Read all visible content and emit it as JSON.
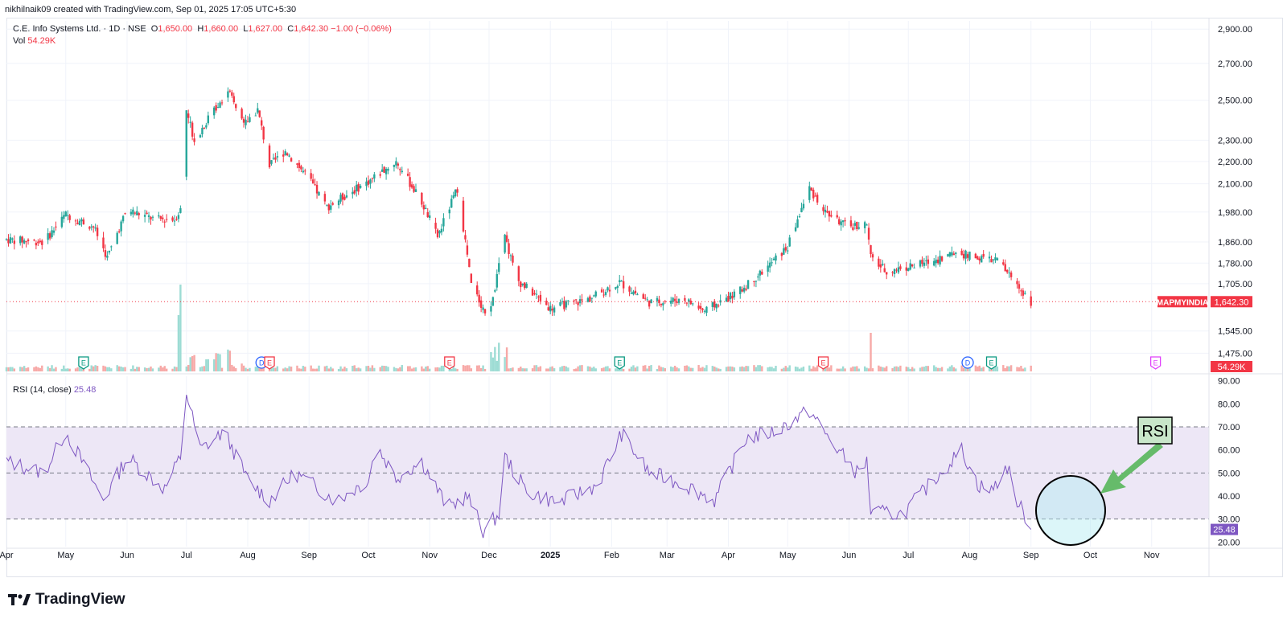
{
  "header": {
    "author_line": "nikhilnaik09 created with TradingView.com, Sep 01, 2025 17:05 UTC+5:30",
    "symbol_text": "C.E. Info Systems Ltd. · 1D · NSE",
    "ohlc": [
      {
        "k": "O",
        "v": "1,650.00"
      },
      {
        "k": "H",
        "v": "1,660.00"
      },
      {
        "k": "L",
        "v": "1,627.00"
      },
      {
        "k": "C",
        "v": "1,642.30"
      }
    ],
    "change": "−1.00 (−0.06%)",
    "vol_label": "Vol",
    "vol_value": "54.29K",
    "rsi_label": "RSI (14, close)",
    "rsi_value": "25.48"
  },
  "footer": {
    "brand": "TradingView"
  },
  "colors": {
    "up": "#26a69a",
    "down": "#f23645",
    "rsi_line": "#7e57c2",
    "rsi_band": "#ede7f6",
    "grid": "#f0f3fa",
    "axis_text": "#131722",
    "annotation_green": "#66bb6a",
    "annotation_circle_fill": "#b2ebf2"
  },
  "chart_data": [
    {
      "type": "candlestick",
      "title": "C.E. Info Systems Ltd. · 1D · NSE",
      "y_scale": "log",
      "ylim": [
        1420,
        2950
      ],
      "yticks": [
        "1,475.00",
        "1,545.00",
        "1,705.00",
        "1,780.00",
        "1,860.00",
        "1,980.00",
        "2,100.00",
        "2,200.00",
        "2,300.00",
        "2,500.00",
        "2,700.00",
        "2,900.00"
      ],
      "xticks": [
        "Apr",
        "May",
        "Jun",
        "Jul",
        "Aug",
        "Sep",
        "Oct",
        "Nov",
        "Dec",
        "2025",
        "Feb",
        "Mar",
        "Apr",
        "May",
        "Jun",
        "Jul",
        "Aug",
        "Sep",
        "Oct",
        "Nov"
      ],
      "xrange": [
        "2024-04-01",
        "2025-11-30"
      ],
      "price_path_approx": [
        [
          "2024-04-01",
          1870
        ],
        [
          "2024-04-20",
          1860
        ],
        [
          "2024-05-01",
          1970
        ],
        [
          "2024-05-15",
          1920
        ],
        [
          "2024-05-22",
          1800
        ],
        [
          "2024-06-01",
          1990
        ],
        [
          "2024-06-15",
          1950
        ],
        [
          "2024-06-25",
          1950
        ],
        [
          "2024-06-28",
          1990
        ],
        [
          "2024-07-01",
          2450
        ],
        [
          "2024-07-05",
          2300
        ],
        [
          "2024-07-15",
          2450
        ],
        [
          "2024-07-22",
          2550
        ],
        [
          "2024-07-30",
          2380
        ],
        [
          "2024-08-06",
          2450
        ],
        [
          "2024-08-12",
          2180
        ],
        [
          "2024-08-20",
          2250
        ],
        [
          "2024-09-01",
          2120
        ],
        [
          "2024-09-10",
          2000
        ],
        [
          "2024-10-01",
          2110
        ],
        [
          "2024-10-15",
          2200
        ],
        [
          "2024-10-28",
          2020
        ],
        [
          "2024-11-05",
          1880
        ],
        [
          "2024-11-15",
          2080
        ],
        [
          "2024-11-22",
          1700
        ],
        [
          "2024-12-01",
          1580
        ],
        [
          "2024-12-09",
          1880
        ],
        [
          "2024-12-15",
          1720
        ],
        [
          "2025-01-01",
          1620
        ],
        [
          "2025-01-20",
          1650
        ],
        [
          "2025-02-05",
          1710
        ],
        [
          "2025-02-20",
          1640
        ],
        [
          "2025-03-10",
          1650
        ],
        [
          "2025-03-20",
          1610
        ],
        [
          "2025-04-07",
          1680
        ],
        [
          "2025-04-20",
          1760
        ],
        [
          "2025-05-01",
          1840
        ],
        [
          "2025-05-12",
          2080
        ],
        [
          "2025-05-20",
          1980
        ],
        [
          "2025-05-31",
          1920
        ],
        [
          "2025-06-10",
          1930
        ],
        [
          "2025-06-12",
          1800
        ],
        [
          "2025-06-20",
          1750
        ],
        [
          "2025-07-10",
          1780
        ],
        [
          "2025-07-25",
          1820
        ],
        [
          "2025-08-05",
          1800
        ],
        [
          "2025-08-15",
          1790
        ],
        [
          "2025-08-25",
          1700
        ],
        [
          "2025-09-01",
          1642.3
        ]
      ],
      "last_price_label": "MAPMYINDIA",
      "last_price": "1,642.30",
      "volume_last_label": "54.29K",
      "event_markers": [
        {
          "date": "2024-05-10",
          "label": "E",
          "color": "#089981"
        },
        {
          "date": "2024-08-08",
          "label": "D",
          "color": "#2962ff"
        },
        {
          "date": "2024-08-12",
          "label": "E",
          "color": "#f23645"
        },
        {
          "date": "2024-11-11",
          "label": "E",
          "color": "#f23645"
        },
        {
          "date": "2025-02-05",
          "label": "E",
          "color": "#089981"
        },
        {
          "date": "2025-05-19",
          "label": "E",
          "color": "#f23645"
        },
        {
          "date": "2025-07-31",
          "label": "D",
          "color": "#2962ff"
        },
        {
          "date": "2025-08-12",
          "label": "E",
          "color": "#089981"
        },
        {
          "date": "2025-11-03",
          "label": "E",
          "color": "#e040fb"
        }
      ]
    },
    {
      "type": "line",
      "title": "RSI (14, close)",
      "ylim": [
        18,
        92
      ],
      "yticks": [
        "20.00",
        "30.00",
        "40.00",
        "50.00",
        "60.00",
        "70.00",
        "80.00",
        "90.00"
      ],
      "band": [
        30,
        70
      ],
      "midline": 50,
      "rsi_path_approx": [
        [
          "2024-04-01",
          55
        ],
        [
          "2024-04-20",
          50
        ],
        [
          "2024-05-01",
          68
        ],
        [
          "2024-05-20",
          38
        ],
        [
          "2024-06-01",
          57
        ],
        [
          "2024-06-20",
          43
        ],
        [
          "2024-06-28",
          57
        ],
        [
          "2024-07-01",
          85
        ],
        [
          "2024-07-08",
          60
        ],
        [
          "2024-07-20",
          68
        ],
        [
          "2024-08-01",
          47
        ],
        [
          "2024-08-12",
          38
        ],
        [
          "2024-08-25",
          50
        ],
        [
          "2024-09-15",
          38
        ],
        [
          "2024-10-01",
          47
        ],
        [
          "2024-10-05",
          62
        ],
        [
          "2024-10-15",
          48
        ],
        [
          "2024-10-28",
          55
        ],
        [
          "2024-11-10",
          35
        ],
        [
          "2024-11-20",
          40
        ],
        [
          "2024-11-28",
          25
        ],
        [
          "2024-12-06",
          32
        ],
        [
          "2024-12-09",
          57
        ],
        [
          "2024-12-20",
          42
        ],
        [
          "2025-01-05",
          37
        ],
        [
          "2025-01-25",
          45
        ],
        [
          "2025-02-06",
          67
        ],
        [
          "2025-02-20",
          50
        ],
        [
          "2025-03-10",
          45
        ],
        [
          "2025-03-25",
          38
        ],
        [
          "2025-04-10",
          65
        ],
        [
          "2025-04-25",
          68
        ],
        [
          "2025-05-12",
          77
        ],
        [
          "2025-05-20",
          67
        ],
        [
          "2025-06-05",
          50
        ],
        [
          "2025-06-10",
          55
        ],
        [
          "2025-06-12",
          33
        ],
        [
          "2025-06-28",
          32
        ],
        [
          "2025-07-15",
          48
        ],
        [
          "2025-07-28",
          60
        ],
        [
          "2025-08-05",
          45
        ],
        [
          "2025-08-12",
          42
        ],
        [
          "2025-08-20",
          53
        ],
        [
          "2025-08-25",
          38
        ],
        [
          "2025-09-01",
          25.48
        ]
      ],
      "last_value_label": "25.48",
      "annotation_text": "RSI"
    }
  ]
}
